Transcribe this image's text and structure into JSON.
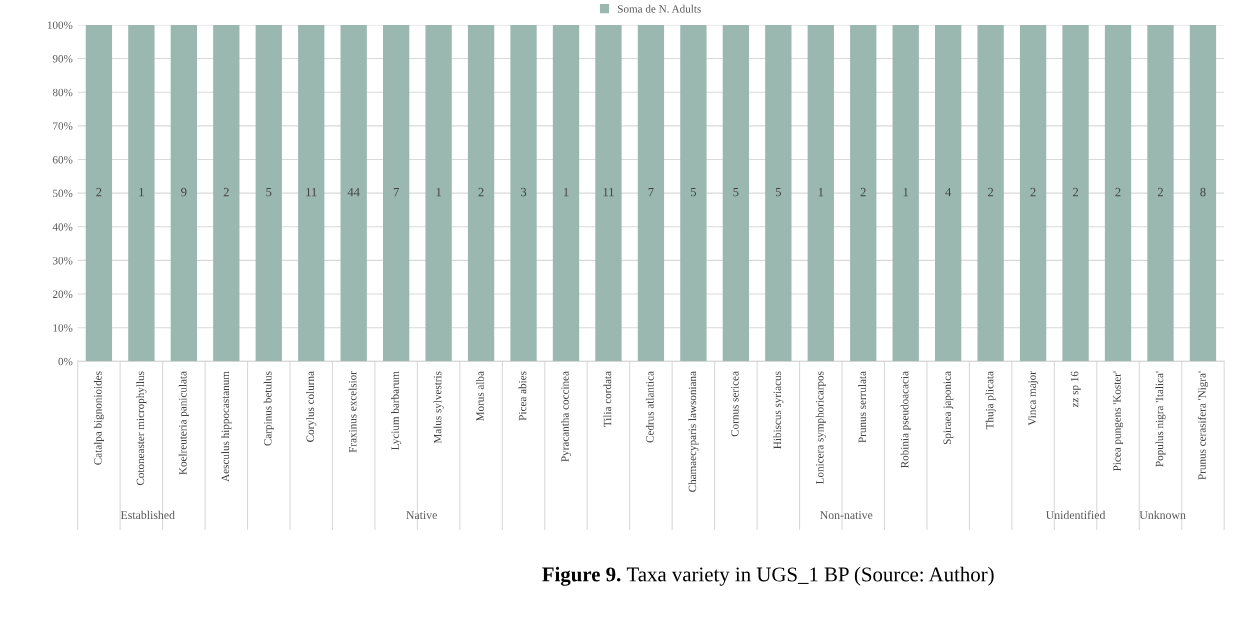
{
  "chart_data": {
    "type": "bar",
    "title": "Figure 9.",
    "subtitle": "Taxa variety in UGS_1 BP (Source: Author)",
    "categories": [
      "Catalpa bignonioides",
      "Cotoneaster microphyllus",
      "Koelreuteria paniculata",
      "Aesculus hippocastanum",
      "Carpinus betulus",
      "Corylus colurna",
      "Fraxinus excelsior",
      "Lycium barbarum",
      "Malus sylvestris",
      "Morus alba",
      "Picea abies",
      "Pyracantha coccinea",
      "Tilia cordata",
      "Cedrus atlantica",
      "Chamaecyparis lawsoniana",
      "Cornus sericea",
      "Hibiscus syriacus",
      "Lonicera symphoricarpos",
      "Prunus serrulata",
      "Robinia pseudoacacia",
      "Spiraea japonica",
      "Thuja plicata",
      "Vinca major",
      "zz sp 16",
      "Picea pungens 'Koster'",
      "Populus nigra 'Italica'",
      "Prunus cerasifera 'Nigra'"
    ],
    "series": [
      {
        "name": "Soma de N. Adults",
        "color": "#9bb8b0",
        "values": [
          100,
          100,
          100,
          100,
          100,
          100,
          100,
          100,
          100,
          100,
          100,
          100,
          100,
          100,
          100,
          100,
          100,
          100,
          100,
          100,
          100,
          100,
          100,
          100,
          100,
          100,
          100
        ]
      }
    ],
    "ylim": [
      0,
      100
    ],
    "yticks": [
      {
        "value": 0,
        "label": "0%"
      },
      {
        "value": 10,
        "label": "10%"
      },
      {
        "value": 20,
        "label": "20%"
      },
      {
        "value": 30,
        "label": "30%"
      },
      {
        "value": 40,
        "label": "40%"
      },
      {
        "value": 50,
        "label": "50%"
      },
      {
        "value": 60,
        "label": "60%"
      },
      {
        "value": 70,
        "label": "70%"
      },
      {
        "value": 80,
        "label": "80%"
      },
      {
        "value": 90,
        "label": "90%"
      },
      {
        "value": 100,
        "label": "100%"
      }
    ],
    "grid": "y",
    "legend": "top",
    "annotations": [
      "2",
      "1",
      "9",
      "2",
      "5",
      "11",
      "44",
      "7",
      "1",
      "2",
      "3",
      "1",
      "11",
      "7",
      "5",
      "5",
      "5",
      "1",
      "2",
      "1",
      "4",
      "2",
      "2",
      "2",
      "2",
      "2",
      "8",
      "Established",
      "Native",
      "Non-native",
      "Unidentified",
      "Unknown"
    ]
  }
}
